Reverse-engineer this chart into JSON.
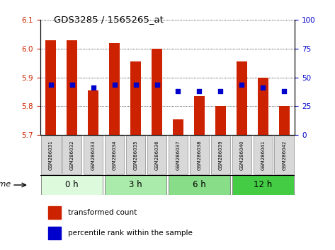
{
  "title": "GDS3285 / 1565265_at",
  "samples": [
    "GSM286031",
    "GSM286032",
    "GSM286033",
    "GSM286034",
    "GSM286035",
    "GSM286036",
    "GSM286037",
    "GSM286038",
    "GSM286039",
    "GSM286040",
    "GSM286041",
    "GSM286042"
  ],
  "transformed_count": [
    6.03,
    6.03,
    5.855,
    6.02,
    5.955,
    6.0,
    5.755,
    5.835,
    5.8,
    5.955,
    5.9,
    5.8
  ],
  "percentile_rank": [
    44,
    44,
    41,
    44,
    44,
    44,
    38,
    38,
    38,
    44,
    41,
    38
  ],
  "bar_bottom": 5.7,
  "ylim_left": [
    5.7,
    6.1
  ],
  "ylim_right": [
    0,
    100
  ],
  "yticks_left": [
    5.7,
    5.8,
    5.9,
    6.0,
    6.1
  ],
  "yticks_right": [
    0,
    25,
    50,
    75,
    100
  ],
  "group_defs": [
    {
      "label": "0 h",
      "start": 0,
      "end": 2,
      "color": "#ddfadd"
    },
    {
      "label": "3 h",
      "start": 3,
      "end": 5,
      "color": "#aaeaaa"
    },
    {
      "label": "6 h",
      "start": 6,
      "end": 8,
      "color": "#88dd88"
    },
    {
      "label": "12 h",
      "start": 9,
      "end": 11,
      "color": "#44cc44"
    }
  ],
  "bar_color": "#cc2200",
  "dot_color": "#0000cc",
  "tick_color_left": "#cc2200",
  "tick_color_right": "#0000cc",
  "sample_bg": "#d8d8d8",
  "sample_border": "#999999",
  "legend_red_label": "transformed count",
  "legend_blue_label": "percentile rank within the sample",
  "time_label": "time"
}
